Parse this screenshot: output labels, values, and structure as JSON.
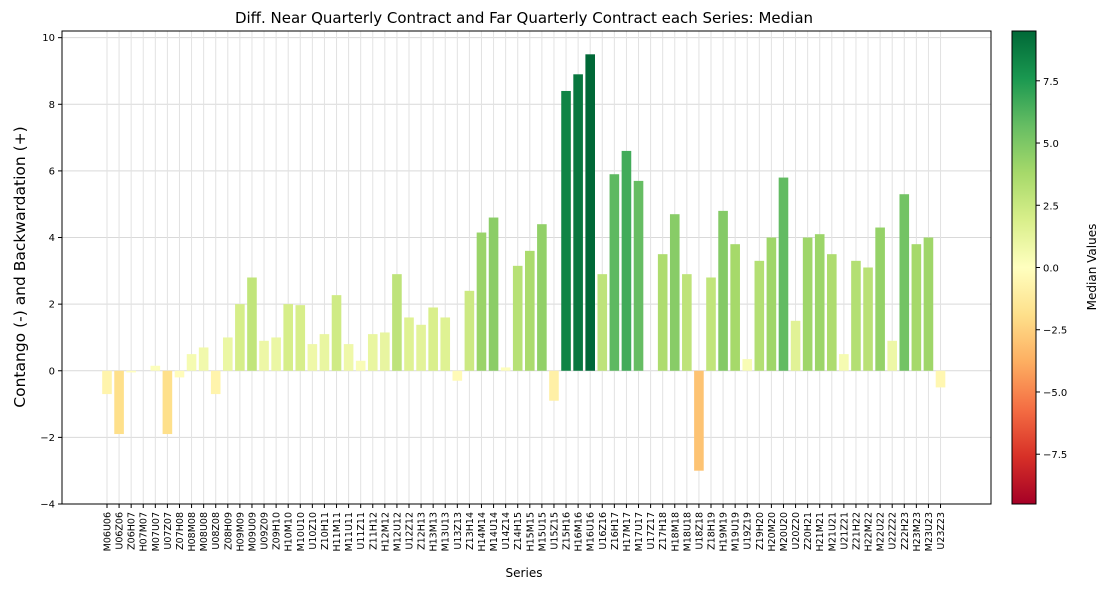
{
  "chart_data": {
    "type": "bar",
    "title": "Diff. Near Quarterly Contract and Far Quarterly Contract each Series: Median",
    "xlabel": "Series",
    "ylabel": "Contango (-) and Backwardation (+)",
    "ylim": [
      -4,
      10.2
    ],
    "yticks": [
      -4,
      -2,
      0,
      2,
      4,
      6,
      8,
      10
    ],
    "grid": true,
    "colormap": "RdYlGn",
    "colorbar": {
      "label": "Median Values",
      "range": [
        -9.5,
        9.5
      ],
      "ticks": [
        -7.5,
        -5.0,
        -2.5,
        0.0,
        2.5,
        5.0,
        7.5
      ],
      "tick_labels": [
        "−7.5",
        "−5.0",
        "−2.5",
        "0.0",
        "2.5",
        "5.0",
        "7.5"
      ]
    },
    "categories": [
      "M06U06",
      "U06Z06",
      "Z06H07",
      "H07M07",
      "M07U07",
      "U07Z07",
      "Z07H08",
      "H08M08",
      "M08U08",
      "U08Z08",
      "Z08H09",
      "H09M09",
      "M09U09",
      "U09Z09",
      "Z09H10",
      "H10M10",
      "M10U10",
      "U10Z10",
      "Z10H11",
      "H11M11",
      "M11U11",
      "U11Z11",
      "Z11H12",
      "H12M12",
      "M12U12",
      "U12Z12",
      "Z12H13",
      "H13M13",
      "M13U13",
      "U13Z13",
      "Z13H14",
      "H14M14",
      "M14U14",
      "U14Z14",
      "Z14H15",
      "H15M15",
      "M15U15",
      "U15Z15",
      "Z15H16",
      "H16M16",
      "M16U16",
      "U16Z16",
      "Z16H17",
      "H17M17",
      "M17U17",
      "U17Z17",
      "Z17H18",
      "H18M18",
      "M18U18",
      "U18Z18",
      "Z18H19",
      "H19M19",
      "M19U19",
      "U19Z19",
      "Z19H20",
      "H20M20",
      "M20U20",
      "U20Z20",
      "Z20H21",
      "H21M21",
      "M21U21",
      "U21Z21",
      "Z21H22",
      "H22M22",
      "M22U22",
      "U22Z22",
      "Z22H23",
      "H23M23",
      "M23U23",
      "U23Z23"
    ],
    "values": [
      -0.7,
      -1.9,
      -0.05,
      0.0,
      0.15,
      -1.9,
      -0.2,
      0.5,
      0.7,
      -0.7,
      1.0,
      2.0,
      2.8,
      0.9,
      1.0,
      2.0,
      1.97,
      0.8,
      1.1,
      2.27,
      0.8,
      0.3,
      1.1,
      1.15,
      2.9,
      1.6,
      1.38,
      1.9,
      1.6,
      -0.3,
      2.4,
      4.15,
      4.6,
      0.1,
      3.15,
      3.6,
      4.4,
      -0.9,
      8.4,
      8.9,
      9.5,
      2.9,
      5.9,
      6.6,
      5.7,
      0.0,
      3.5,
      4.7,
      2.9,
      -3.0,
      2.8,
      4.8,
      3.8,
      0.35,
      3.3,
      4.0,
      5.8,
      1.5,
      4.0,
      4.1,
      3.5,
      0.5,
      3.3,
      3.1,
      4.3,
      0.9,
      5.3,
      3.8,
      4.0,
      -0.5
    ]
  }
}
